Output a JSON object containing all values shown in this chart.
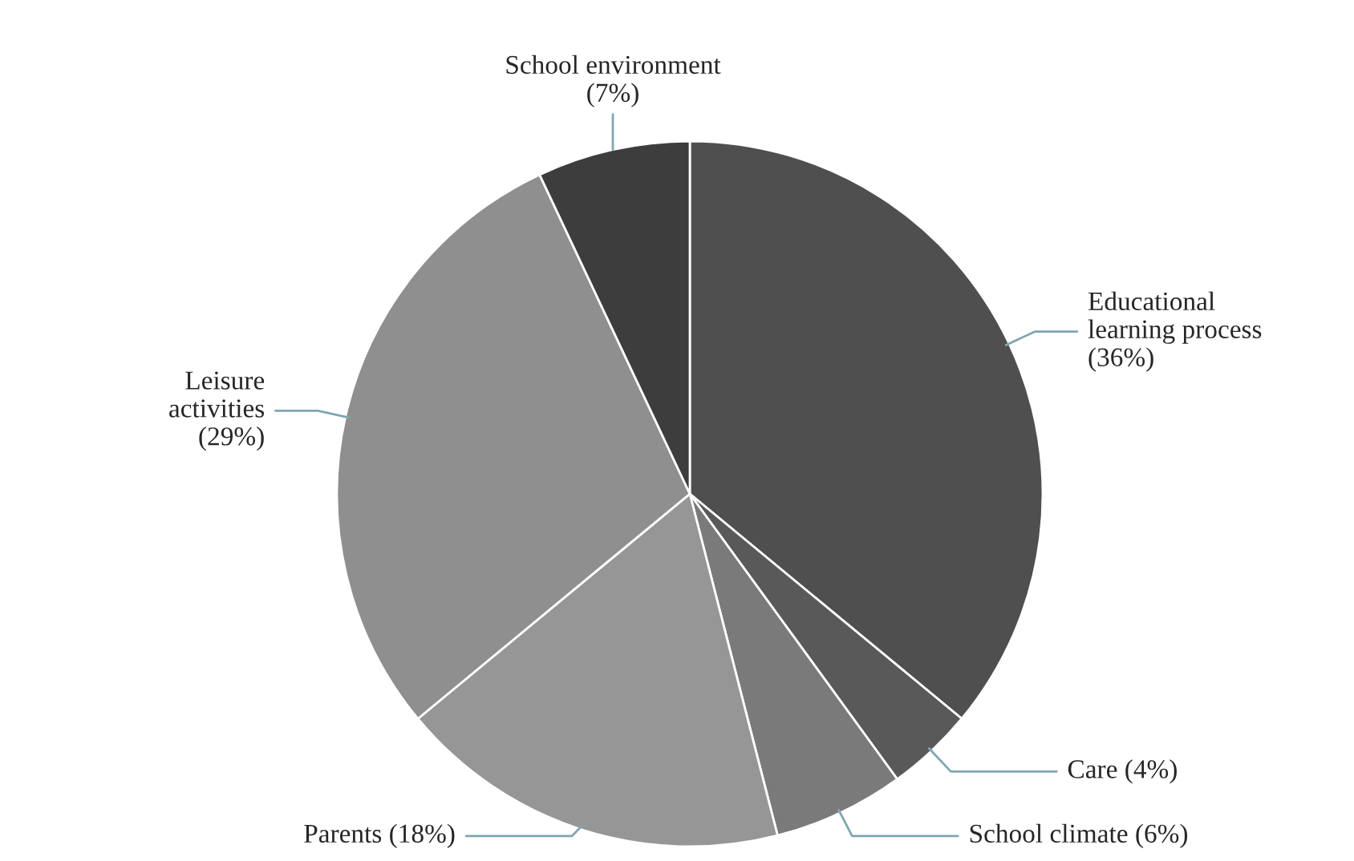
{
  "chart_data": {
    "type": "pie",
    "categories": [
      "Educational\nlearning process",
      "Care",
      "School climate",
      "Parents",
      "Leisure\nactivities",
      "School environment"
    ],
    "values": [
      36,
      4,
      6,
      18,
      29,
      7
    ],
    "value_labels": [
      "(36%)",
      "(4%)",
      "(6%)",
      "(18%)",
      "(29%)",
      "(7%)"
    ],
    "colors": [
      "#4f4f4f",
      "#595959",
      "#7a7a7a",
      "#969696",
      "#8f8f8f",
      "#3d3d3d"
    ],
    "legend": false
  }
}
